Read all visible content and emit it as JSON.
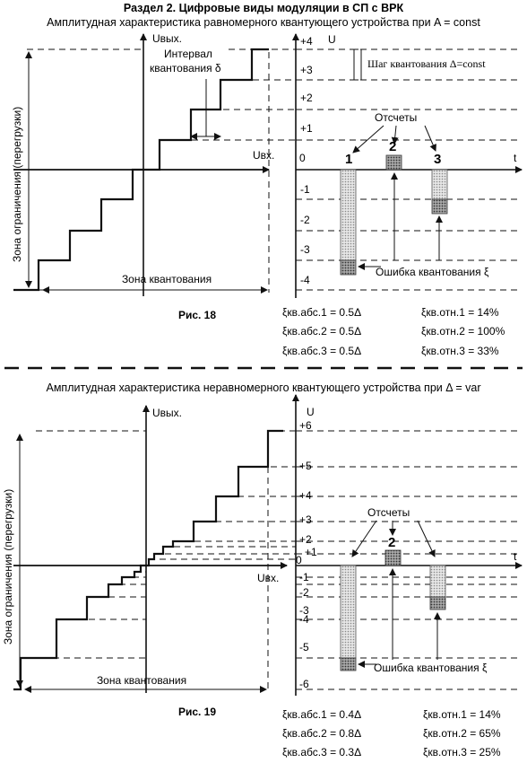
{
  "header": {
    "title": "Раздел 2. Цифровые виды модуляции в СП с ВРК"
  },
  "fig18": {
    "subtitle": "Амплитудная характеристика равномерного квантующего устройства при A = const",
    "uout_label": "Uвых.",
    "uin_label": "Uвх.",
    "interval_label_1": "Интервал",
    "interval_label_2": "квантования δ",
    "limit_zone": "Зона ограничения (перегрузки)",
    "quant_zone": "Зона квантования",
    "caption": "Рис. 18",
    "u_axis": "U",
    "t_axis": "t",
    "zero": "0",
    "ticks": [
      "+4",
      "+3",
      "+2",
      "+1",
      "-1",
      "-2",
      "-3",
      "-4"
    ],
    "step_label": "Шаг квантования Δ=const",
    "samples_label": "Отсчеты",
    "sample_numbers": [
      "1",
      "2",
      "3"
    ],
    "error_label": "Ошибка квантования ξ",
    "formulas_left": [
      "ξкв.абс.1 = 0.5Δ",
      "ξкв.абс.2 = 0.5Δ",
      "ξкв.абс.3 = 0.5Δ"
    ],
    "formulas_right": [
      "ξкв.отн.1 = 14%",
      "ξкв.отн.2 = 100%",
      "ξкв.отн.3 = 33%"
    ]
  },
  "fig19": {
    "subtitle": "Амплитудная характеристика неравномерного квантующего устройства при Δ = var",
    "uout_label": "Uвых.",
    "uin_label": "Uвх.",
    "limit_zone": "Зона ограничения (перегрузки)",
    "quant_zone": "Зона квантования",
    "caption": "Рис. 19",
    "u_axis": "U",
    "t_axis": "t",
    "zero": "0",
    "ticks": [
      "+6",
      "+5",
      "+4",
      "+3",
      "+2",
      "+1",
      "-1",
      "-2",
      "-3",
      "-4",
      "-5",
      "-6"
    ],
    "samples_label": "Отсчеты",
    "sample_numbers": [
      "1",
      "2",
      "3"
    ],
    "error_label": "Ошибка квантования ξ",
    "formulas_left": [
      "ξкв.абс.1 = 0.4Δ",
      "ξкв.абс.2 = 0.8Δ",
      "ξкв.абс.3 = 0.3Δ"
    ],
    "formulas_right": [
      "ξкв.отн.1 = 14%",
      "ξкв.отн.2 = 65%",
      "ξкв.отн.3 = 25%"
    ]
  }
}
